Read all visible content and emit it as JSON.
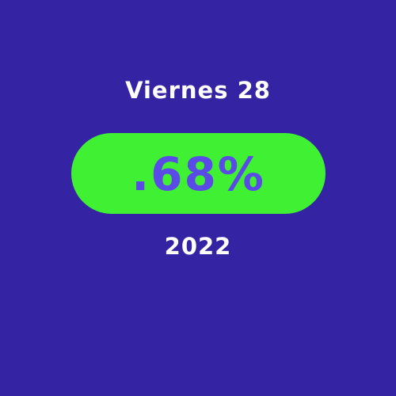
{
  "card": {
    "date_label": "Viernes 28",
    "value": ".68%",
    "year": "2022"
  },
  "colors": {
    "background": "#3424a3",
    "pill": "#40f032",
    "value_text": "#5a4be6",
    "label_text": "#ffffff"
  }
}
